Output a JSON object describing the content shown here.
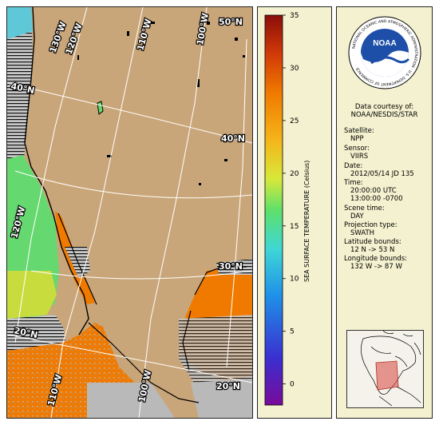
{
  "map": {
    "graticule_labels": {
      "lon_130w_top": "130°W",
      "lon_120w_top": "120°W",
      "lon_110w_top": "110°W",
      "lon_100w_top": "100°W",
      "lat_50n_right": "50°N",
      "lat_40n_left": "40°N",
      "lat_40n_right": "40°N",
      "lon_120w_left": "120°W",
      "lat_30n_right": "30°N",
      "lat_20n_left": "20°N",
      "lon_110w_bottom": "110°W",
      "lon_100w_bottom": "100°W",
      "lat_20n_right": "20°N"
    },
    "colors": {
      "land": "#c9a679",
      "no_data": "#bdbdbd",
      "warm_sst": "#f07a00",
      "graticule": "#ffffff"
    }
  },
  "colorbar": {
    "title": "SEA SURFACE TEMPERATURE (Celsius)",
    "min": -2,
    "max": 35,
    "ticks": [
      "0",
      "5",
      "10",
      "15",
      "20",
      "25",
      "30",
      "35"
    ],
    "tick_values": [
      0,
      5,
      10,
      15,
      20,
      25,
      30,
      35
    ],
    "colors": [
      "#7a0a9a",
      "#3a2fd0",
      "#1f90e8",
      "#3fd6d6",
      "#5ee06a",
      "#d8e83a",
      "#f5b41a",
      "#f07a00",
      "#d23a08",
      "#8a0e0a"
    ]
  },
  "info": {
    "logo_text": "NOAA",
    "logo_ring_text": "NATIONAL OCEANIC AND ATMOSPHERIC ADMINISTRATION · U.S. DEPARTMENT OF COMMERCE",
    "courtesy_line1": "Data courtesy of:",
    "courtesy_line2": "NOAA/NESDIS/STAR",
    "satellite_label": "Satellite:",
    "satellite_value": "NPP",
    "sensor_label": "Sensor:",
    "sensor_value": "VIIRS",
    "date_label": "Date:",
    "date_value": "2012/05/14 JD 135",
    "time_label": "Time:",
    "time_value_utc": "20:00:00 UTC",
    "time_value_local": "13:00:00 -0700",
    "scene_label": "Scene time:",
    "scene_value": "DAY",
    "projection_label": "Projection type:",
    "projection_value": "SWATH",
    "lat_bounds_label": "Latitude bounds:",
    "lat_bounds_value": "12 N -> 53 N",
    "lon_bounds_label": "Longitude bounds:",
    "lon_bounds_value": "132 W -> 87 W"
  }
}
